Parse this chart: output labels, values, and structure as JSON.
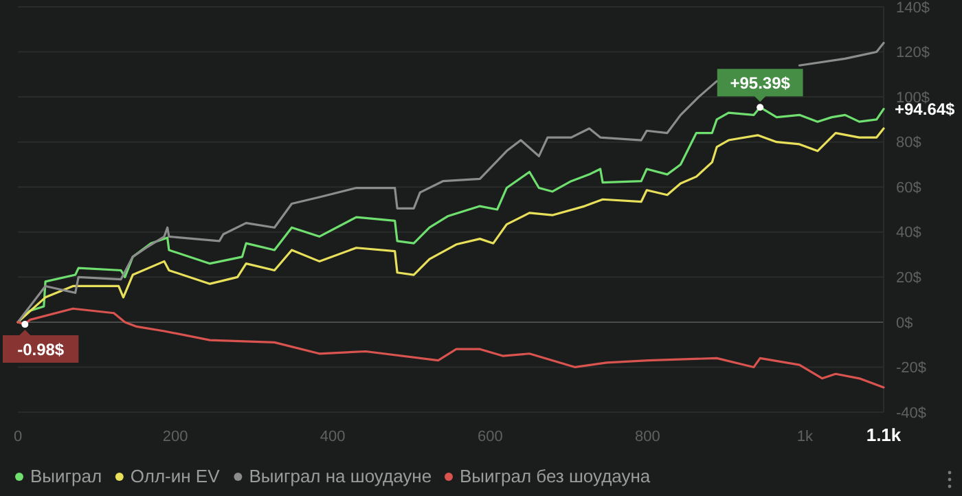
{
  "chart_data": {
    "type": "line",
    "xlim": [
      0,
      1100
    ],
    "xticks": [
      0,
      200,
      400,
      600,
      800,
      {
        "value": 1000,
        "label": "1k"
      },
      {
        "value": 1100,
        "label": "1.1k"
      }
    ],
    "ylim": [
      -40,
      140
    ],
    "yticks": [
      {
        "value": -40,
        "label": "-40$"
      },
      {
        "value": -20,
        "label": "-20$"
      },
      {
        "value": 0,
        "label": "0$"
      },
      {
        "value": 20,
        "label": "20$"
      },
      {
        "value": 40,
        "label": "40$"
      },
      {
        "value": 60,
        "label": "60$"
      },
      {
        "value": 80,
        "label": "80$"
      },
      {
        "value": 100,
        "label": "100$"
      },
      {
        "value": 120,
        "label": "120$"
      },
      {
        "value": 140,
        "label": "140$"
      }
    ],
    "grid": "y",
    "legend": "bottom left",
    "marker": "none",
    "line_style": "solid",
    "annotations": [
      {
        "text": "+95.39$",
        "x": 943,
        "y": 95.39
      },
      {
        "text": "+94.64$",
        "x": 1100,
        "y": 94.64
      },
      {
        "text": "-0.98$",
        "x": 9,
        "y": -0.98
      }
    ],
    "series": [
      {
        "name": "Выиграл",
        "color": "#6fe06f",
        "x": [
          0,
          15,
          33,
          35,
          73,
          77,
          131,
          136,
          146,
          169,
          190,
          192,
          244,
          285,
          290,
          326,
          348,
          383,
          430,
          479,
          482,
          503,
          523,
          546,
          587,
          609,
          621,
          650,
          662,
          679,
          703,
          726,
          740,
          743,
          792,
          799,
          825,
          842,
          862,
          882,
          888,
          903,
          935,
          943,
          964,
          993,
          1016,
          1034,
          1051,
          1069,
          1091,
          1100
        ],
        "values": [
          0,
          5,
          7,
          18,
          21,
          24,
          23,
          20,
          29,
          35,
          37.5,
          32,
          26,
          29,
          35,
          32,
          42,
          38,
          46.6,
          45,
          36,
          35,
          42,
          47,
          51.5,
          50,
          59.6,
          66.7,
          59.6,
          58,
          62.6,
          65.6,
          68,
          62,
          62.6,
          68,
          65.6,
          70,
          84,
          84,
          90,
          93,
          92,
          95.39,
          91,
          92,
          89,
          91,
          92,
          89,
          90,
          94.64
        ]
      },
      {
        "name": "Олл-ин EV",
        "color": "#e8e05a",
        "x": [
          0,
          35,
          70,
          128,
          134,
          146,
          186,
          192,
          244,
          279,
          290,
          326,
          348,
          383,
          430,
          479,
          482,
          503,
          523,
          557,
          587,
          604,
          621,
          650,
          679,
          720,
          743,
          792,
          799,
          825,
          842,
          862,
          882,
          888,
          903,
          940,
          964,
          993,
          1016,
          1039,
          1069,
          1091,
          1100
        ],
        "values": [
          0,
          11,
          16,
          16,
          11,
          21,
          27,
          23,
          17,
          20,
          26,
          23,
          32,
          27,
          33,
          31.5,
          22,
          21,
          28,
          34.5,
          37,
          35,
          43.4,
          48.5,
          47.5,
          51.5,
          54.5,
          53.5,
          58.6,
          56.5,
          61.6,
          64.6,
          71,
          77.8,
          80.8,
          83,
          80,
          79,
          76,
          84,
          82,
          82,
          86
        ]
      },
      {
        "name": "Выиграл на шоудауне",
        "color": "#8c8c8c",
        "x": [
          0,
          35,
          73,
          77,
          131,
          146,
          163,
          186,
          190,
          192,
          256,
          261,
          290,
          326,
          348,
          383,
          430,
          479,
          482,
          503,
          511,
          540,
          587,
          621,
          639,
          662,
          673,
          703,
          726,
          740,
          792,
          799,
          825,
          842,
          865,
          888,
          912,
          957,
          993,
          1051,
          1091,
          1100
        ],
        "values": [
          0,
          16,
          13,
          20,
          19,
          29,
          33,
          38,
          42,
          38,
          36,
          39,
          44,
          42,
          52.6,
          55.5,
          59.6,
          59.6,
          50.5,
          50.5,
          57.6,
          62.6,
          63.6,
          76,
          80.8,
          73.7,
          82,
          82,
          86,
          82,
          80.8,
          85,
          84,
          92,
          100,
          107,
          null,
          null,
          114,
          117,
          120,
          124
        ]
      },
      {
        "name": "Выиграл без шоудауна",
        "color": "#d9534f",
        "x": [
          0,
          9,
          15,
          70,
          122,
          136,
          151,
          186,
          244,
          326,
          383,
          442,
          534,
          557,
          587,
          616,
          650,
          708,
          748,
          801,
          888,
          935,
          943,
          993,
          1022,
          1039,
          1069,
          1100
        ],
        "values": [
          0,
          -0.98,
          1,
          6,
          4,
          0,
          -2,
          -4,
          -8,
          -9,
          -14,
          -13,
          -17,
          -12,
          -12,
          -15,
          -14,
          -20,
          -18,
          -17,
          -16,
          -20,
          -16,
          -19,
          -25,
          -23,
          -25,
          -29
        ]
      }
    ]
  }
}
